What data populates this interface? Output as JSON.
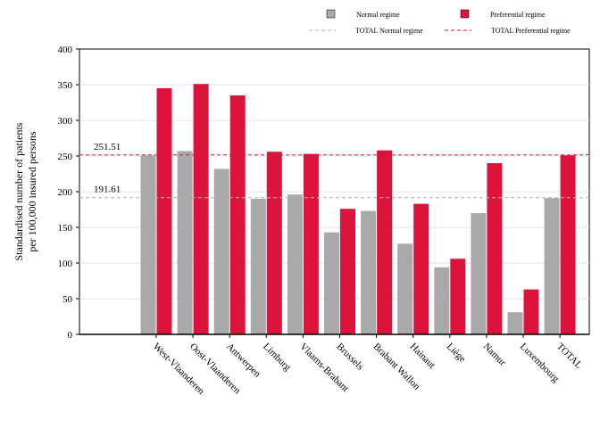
{
  "chart_data": {
    "type": "bar",
    "title": "",
    "xlabel": "",
    "ylabel": [
      "Standardised number of patients",
      "per 100,000 insured persons"
    ],
    "ylim": [
      0,
      400
    ],
    "yticks": [
      0,
      50,
      100,
      150,
      200,
      250,
      300,
      350,
      400
    ],
    "grid": true,
    "legend_position": "top",
    "categories": [
      "West-Vlaanderen",
      "Oost-Vlaanderen",
      "Antwerpen",
      "Limburg",
      "Vlaams-Brabant",
      "Brussels",
      "Brabant Wallon",
      "Hainaut",
      "Liège",
      "Namur",
      "Luxembourg",
      "TOTAL"
    ],
    "series": [
      {
        "name": "Normal regime",
        "color": "#a9a9a9",
        "values": [
          251,
          257,
          232,
          190,
          196,
          143,
          173,
          127,
          94,
          170,
          31,
          191
        ]
      },
      {
        "name": "Preferential regime",
        "color": "#dc143c",
        "values": [
          345,
          351,
          335,
          256,
          253,
          176,
          258,
          183,
          106,
          240,
          63,
          251
        ]
      }
    ],
    "reference_lines": [
      {
        "name": "TOTAL Normal regime",
        "value": 191.61,
        "label": "191.61",
        "color": "#b0b0b0"
      },
      {
        "name": "TOTAL Preferential regime",
        "value": 251.51,
        "label": "251.51",
        "color": "#dc143c"
      }
    ]
  }
}
